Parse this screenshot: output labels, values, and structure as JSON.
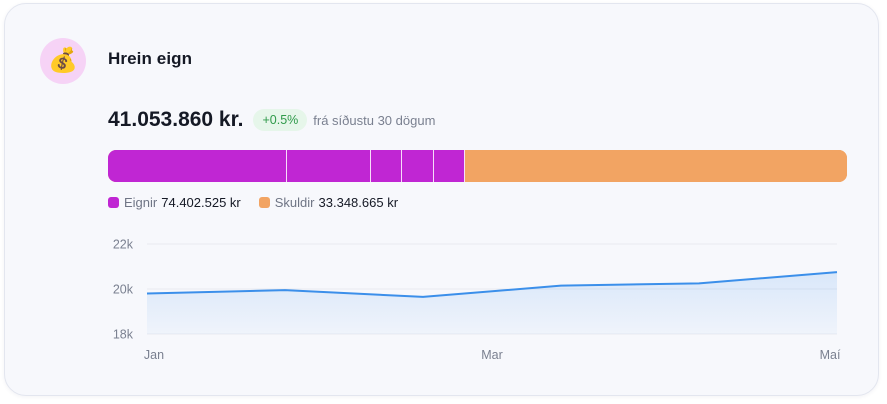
{
  "header": {
    "icon": "money-bag-icon",
    "icon_glyph": "💰",
    "title": "Hrein eign"
  },
  "summary": {
    "amount": "41.053.860 kr.",
    "change": "+0.5%",
    "period": "frá síðustu 30 dögum"
  },
  "composition": {
    "total": 107751190,
    "assets_color": "#c026d3",
    "liabilities_color": "#f2a463",
    "asset_segments": [
      0.2425,
      0.1133,
      0.0425,
      0.0425,
      0.0425
    ],
    "legend": [
      {
        "label": "Eignir",
        "value": "74.402.525 kr",
        "color": "#c026d3"
      },
      {
        "label": "Skuldir",
        "value": "33.348.665 kr",
        "color": "#f2a463"
      }
    ]
  },
  "chart_data": {
    "type": "area",
    "x_tick_labels": [
      "Jan",
      "Mar",
      "Maí"
    ],
    "y_tick_labels": [
      "22k",
      "20k",
      "18k"
    ],
    "ylim": [
      18000,
      22000
    ],
    "grid": true,
    "line_color": "#3b8fea",
    "series": [
      {
        "values": [
          19800,
          19950,
          19650,
          20150,
          20250,
          20750
        ]
      }
    ]
  }
}
